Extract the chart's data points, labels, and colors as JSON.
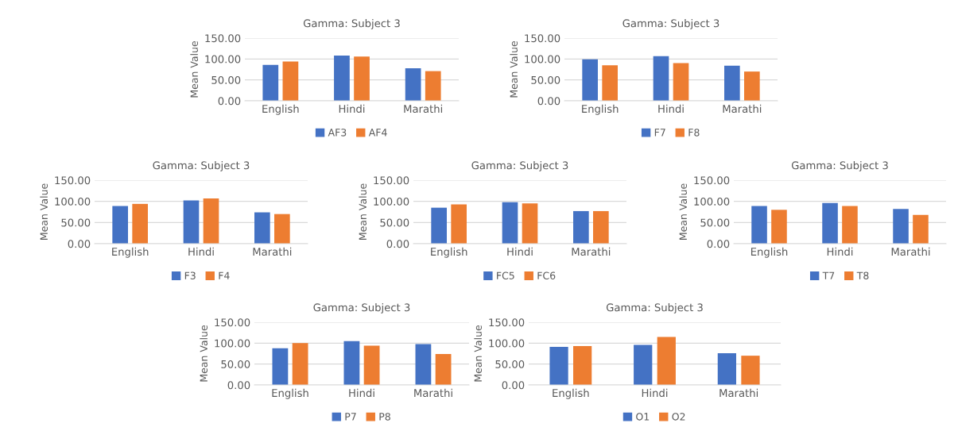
{
  "chart_data": [
    {
      "type": "bar",
      "title": "Gamma: Subject 3",
      "ylabel": "Mean Value",
      "categories": [
        "English",
        "Hindi",
        "Marathi"
      ],
      "ylim": [
        0,
        150
      ],
      "yticks": [
        {
          "value": 0,
          "label": "0.00"
        },
        {
          "value": 50,
          "label": "50.00"
        },
        {
          "value": 100,
          "label": "100.00"
        },
        {
          "value": 150,
          "label": "150.00"
        }
      ],
      "grid": "y",
      "legend": "bottom",
      "series": [
        {
          "name": "AF3",
          "color": "#4472c4",
          "values": [
            86,
            108,
            78
          ]
        },
        {
          "name": "AF4",
          "color": "#ed7d31",
          "values": [
            94,
            106,
            71
          ]
        }
      ]
    },
    {
      "type": "bar",
      "title": "Gamma: Subject 3",
      "ylabel": "Mean Value",
      "categories": [
        "English",
        "Hindi",
        "Marathi"
      ],
      "ylim": [
        0,
        150
      ],
      "yticks": [
        {
          "value": 0,
          "label": "0.00"
        },
        {
          "value": 50,
          "label": "50.00"
        },
        {
          "value": 100,
          "label": "100.00"
        },
        {
          "value": 150,
          "label": "150.00"
        }
      ],
      "grid": "y",
      "legend": "bottom",
      "series": [
        {
          "name": "F7",
          "color": "#4472c4",
          "values": [
            99,
            107,
            84
          ]
        },
        {
          "name": "F8",
          "color": "#ed7d31",
          "values": [
            85,
            90,
            70
          ]
        }
      ]
    },
    {
      "type": "bar",
      "title": "Gamma: Subject 3",
      "ylabel": "Mean Value",
      "categories": [
        "English",
        "Hindi",
        "Marathi"
      ],
      "ylim": [
        0,
        150
      ],
      "yticks": [
        {
          "value": 0,
          "label": "0.00"
        },
        {
          "value": 50,
          "label": "50.00"
        },
        {
          "value": 100,
          "label": "100.00"
        },
        {
          "value": 150,
          "label": "150.00"
        }
      ],
      "grid": "y",
      "legend": "bottom",
      "series": [
        {
          "name": "F3",
          "color": "#4472c4",
          "values": [
            89,
            102,
            74
          ]
        },
        {
          "name": "F4",
          "color": "#ed7d31",
          "values": [
            94,
            107,
            70
          ]
        }
      ]
    },
    {
      "type": "bar",
      "title": "Gamma: Subject 3",
      "ylabel": "Mean Value",
      "categories": [
        "English",
        "Hindi",
        "Marathi"
      ],
      "ylim": [
        0,
        150
      ],
      "yticks": [
        {
          "value": 0,
          "label": "0.00"
        },
        {
          "value": 50,
          "label": "50.00"
        },
        {
          "value": 100,
          "label": "100.00"
        },
        {
          "value": 150,
          "label": "150.00"
        }
      ],
      "grid": "y",
      "legend": "bottom",
      "series": [
        {
          "name": "FC5",
          "color": "#4472c4",
          "values": [
            85,
            98,
            77
          ]
        },
        {
          "name": "FC6",
          "color": "#ed7d31",
          "values": [
            93,
            95,
            77
          ]
        }
      ]
    },
    {
      "type": "bar",
      "title": "Gamma: Subject 3",
      "ylabel": "Mean Value",
      "categories": [
        "English",
        "Hindi",
        "Marathi"
      ],
      "ylim": [
        0,
        150
      ],
      "yticks": [
        {
          "value": 0,
          "label": "0.00"
        },
        {
          "value": 50,
          "label": "50.00"
        },
        {
          "value": 100,
          "label": "100.00"
        },
        {
          "value": 150,
          "label": "150.00"
        }
      ],
      "grid": "y",
      "legend": "bottom",
      "series": [
        {
          "name": "T7",
          "color": "#4472c4",
          "values": [
            89,
            96,
            82
          ]
        },
        {
          "name": "T8",
          "color": "#ed7d31",
          "values": [
            80,
            89,
            68
          ]
        }
      ]
    },
    {
      "type": "bar",
      "title": "Gamma: Subject 3",
      "ylabel": "Mean Value",
      "categories": [
        "English",
        "Hindi",
        "Marathi"
      ],
      "ylim": [
        0,
        150
      ],
      "yticks": [
        {
          "value": 0,
          "label": "0.00"
        },
        {
          "value": 50,
          "label": "50.00"
        },
        {
          "value": 100,
          "label": "100.00"
        },
        {
          "value": 150,
          "label": "150.00"
        }
      ],
      "grid": "y",
      "legend": "bottom",
      "series": [
        {
          "name": "P7",
          "color": "#4472c4",
          "values": [
            88,
            105,
            98
          ]
        },
        {
          "name": "P8",
          "color": "#ed7d31",
          "values": [
            100,
            94,
            74
          ]
        }
      ]
    },
    {
      "type": "bar",
      "title": "Gamma: Subject 3",
      "ylabel": "Mean Value",
      "categories": [
        "English",
        "Hindi",
        "Marathi"
      ],
      "ylim": [
        0,
        150
      ],
      "yticks": [
        {
          "value": 0,
          "label": "0.00"
        },
        {
          "value": 50,
          "label": "50.00"
        },
        {
          "value": 100,
          "label": "100.00"
        },
        {
          "value": 150,
          "label": "150.00"
        }
      ],
      "grid": "y",
      "legend": "bottom",
      "series": [
        {
          "name": "O1",
          "color": "#4472c4",
          "values": [
            91,
            96,
            76
          ]
        },
        {
          "name": "O2",
          "color": "#ed7d31",
          "values": [
            93,
            115,
            70
          ]
        }
      ]
    }
  ]
}
